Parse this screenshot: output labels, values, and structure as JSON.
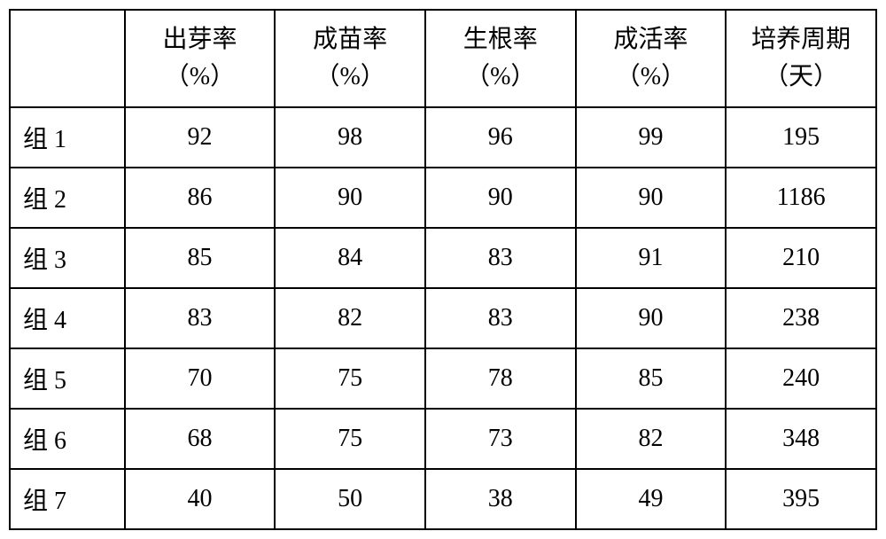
{
  "table": {
    "columns": [
      {
        "line1": "出芽率",
        "line2": "（%）"
      },
      {
        "line1": "成苗率",
        "line2": "（%）"
      },
      {
        "line1": "生根率",
        "line2": "（%）"
      },
      {
        "line1": "成活率",
        "line2": "（%）"
      },
      {
        "line1": "培养周期",
        "line2": "（天）"
      }
    ],
    "rows": [
      {
        "label": "组 1",
        "values": [
          "92",
          "98",
          "96",
          "99",
          "195"
        ]
      },
      {
        "label": "组 2",
        "values": [
          "86",
          "90",
          "90",
          "90",
          "1186"
        ]
      },
      {
        "label": "组 3",
        "values": [
          "85",
          "84",
          "83",
          "91",
          "210"
        ]
      },
      {
        "label": "组 4",
        "values": [
          "83",
          "82",
          "83",
          "90",
          "238"
        ]
      },
      {
        "label": "组 5",
        "values": [
          "70",
          "75",
          "78",
          "85",
          "240"
        ]
      },
      {
        "label": "组 6",
        "values": [
          "68",
          "75",
          "73",
          "82",
          "348"
        ]
      },
      {
        "label": "组 7",
        "values": [
          "40",
          "50",
          "38",
          "49",
          "395"
        ]
      }
    ],
    "styling": {
      "border_color": "#000000",
      "border_width": 2,
      "background_color": "#ffffff",
      "text_color": "#000000",
      "font_family": "SimSun",
      "font_size": 28,
      "header_row_height": 110,
      "data_row_height": 68,
      "label_col_width": 130,
      "data_col_width": 170,
      "text_align_data": "center",
      "text_align_label": "left"
    }
  }
}
